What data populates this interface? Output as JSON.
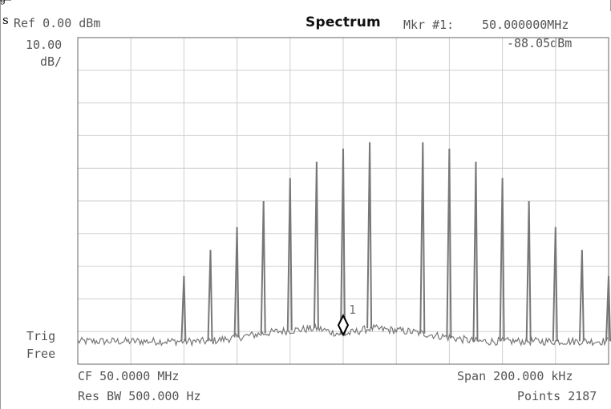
{
  "header": {
    "truncated_top": "g",
    "side_letter": "s",
    "ref_level": "Ref 0.00 dBm",
    "title": "Spectrum",
    "marker_label": "Mkr #1:",
    "marker_freq": "50.000000MHz",
    "marker_level": "-88.05dBm"
  },
  "scale": {
    "per_div_value": "10.00",
    "per_div_unit": "dB/"
  },
  "trigger": {
    "line1": "Trig",
    "line2": "Free"
  },
  "footer": {
    "center_freq": "CF 50.0000 MHz",
    "res_bw": "Res BW 500.000  Hz",
    "span": "Span  200.000 kHz",
    "points": "Points 2187"
  },
  "colors": {
    "trace": "#777777",
    "grid": "#cfcfcf",
    "frame": "#666666",
    "marker": "#000000"
  },
  "chart_data": {
    "type": "line",
    "title": "Spectrum",
    "xlabel": "",
    "ylabel": "",
    "x_unit": "MHz",
    "y_unit": "dBm",
    "xlim": [
      49.9,
      50.1
    ],
    "ylim": [
      -100,
      0
    ],
    "grid": true,
    "center_mhz": 50.0,
    "span_khz": 200.0,
    "peaks": [
      {
        "freq_mhz": 49.94,
        "level_dbm": -73
      },
      {
        "freq_mhz": 49.95,
        "level_dbm": -65
      },
      {
        "freq_mhz": 49.96,
        "level_dbm": -58
      },
      {
        "freq_mhz": 49.97,
        "level_dbm": -50
      },
      {
        "freq_mhz": 49.98,
        "level_dbm": -43
      },
      {
        "freq_mhz": 49.99,
        "level_dbm": -38
      },
      {
        "freq_mhz": 50.0,
        "level_dbm": -34
      },
      {
        "freq_mhz": 50.01,
        "level_dbm": -32
      },
      {
        "freq_mhz": 50.03,
        "level_dbm": -32
      },
      {
        "freq_mhz": 50.04,
        "level_dbm": -34
      },
      {
        "freq_mhz": 50.05,
        "level_dbm": -38
      },
      {
        "freq_mhz": 50.06,
        "level_dbm": -43
      },
      {
        "freq_mhz": 50.07,
        "level_dbm": -50
      },
      {
        "freq_mhz": 50.08,
        "level_dbm": -58
      },
      {
        "freq_mhz": 50.09,
        "level_dbm": -65
      },
      {
        "freq_mhz": 50.1,
        "level_dbm": -73
      }
    ],
    "noise_floor_dbm": -93,
    "pedestal": [
      {
        "freq_mhz": 49.95,
        "level_dbm": -93
      },
      {
        "freq_mhz": 49.975,
        "level_dbm": -90
      },
      {
        "freq_mhz": 49.99,
        "level_dbm": -89
      },
      {
        "freq_mhz": 50.0,
        "level_dbm": -91
      },
      {
        "freq_mhz": 50.01,
        "level_dbm": -89
      },
      {
        "freq_mhz": 50.025,
        "level_dbm": -90
      },
      {
        "freq_mhz": 50.05,
        "level_dbm": -93
      }
    ],
    "marker": {
      "label": "1",
      "freq_mhz": 50.0,
      "level_dbm": -88.05
    }
  }
}
